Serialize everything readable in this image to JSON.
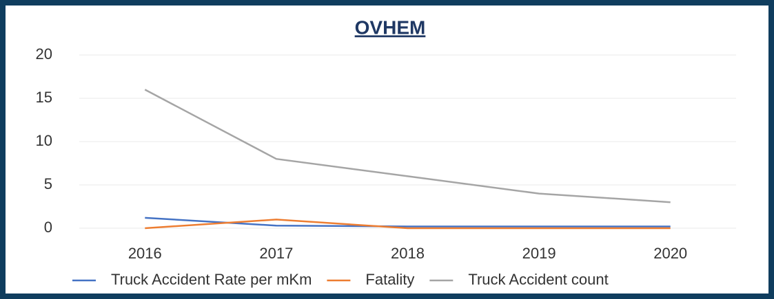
{
  "chart_data": {
    "type": "line",
    "title": "OVHEM",
    "categories": [
      "2016",
      "2017",
      "2018",
      "2019",
      "2020"
    ],
    "series": [
      {
        "name": "Truck Accident Rate per mKm",
        "color": "#4472c4",
        "values": [
          1.2,
          0.3,
          0.2,
          0.2,
          0.2
        ]
      },
      {
        "name": "Fatality",
        "color": "#ed7d31",
        "values": [
          0,
          1,
          0,
          0,
          0
        ]
      },
      {
        "name": "Truck Accident count",
        "color": "#a5a5a5",
        "values": [
          16,
          8,
          6,
          4,
          3
        ]
      }
    ],
    "ylim": [
      0,
      20
    ],
    "yticks": [
      0,
      5,
      10,
      15,
      20
    ],
    "grid": true,
    "legend": "bottom"
  }
}
